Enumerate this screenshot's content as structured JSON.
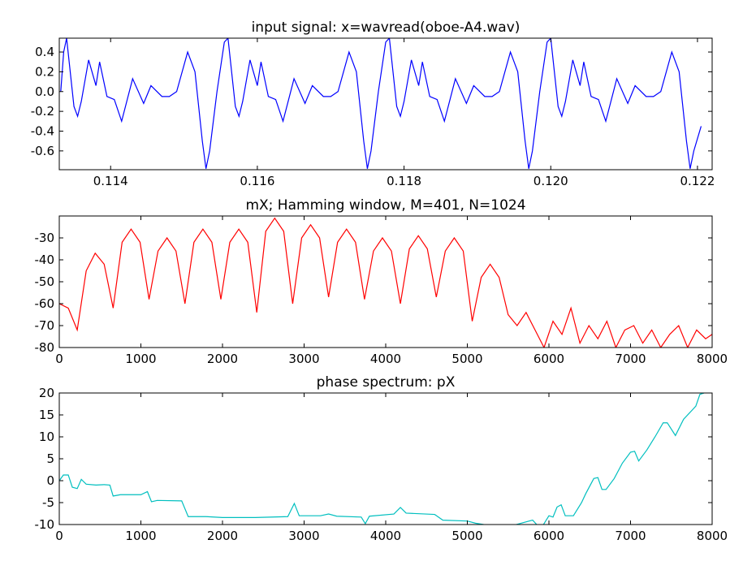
{
  "chart_data": [
    {
      "type": "line",
      "title": "input signal: x=wavread(oboe-A4.wav)",
      "x": [
        0.11332,
        0.11336,
        0.1134,
        0.1135,
        0.11355,
        0.1136,
        0.1137,
        0.1138,
        0.11385,
        0.11395,
        0.11405,
        0.11415,
        0.1143,
        0.11445,
        0.11455,
        0.1147,
        0.1148,
        0.1149,
        0.11505,
        0.11515,
        0.11525,
        0.1153,
        0.11535,
        0.11545,
        0.11555,
        0.1156,
        0.1157,
        0.11575,
        0.1158,
        0.1159,
        0.116,
        0.11605,
        0.11615,
        0.11625,
        0.11635,
        0.1165,
        0.11665,
        0.11675,
        0.1169,
        0.117,
        0.1171,
        0.11725,
        0.11735,
        0.11745,
        0.1175,
        0.11755,
        0.11765,
        0.11775,
        0.1178,
        0.1179,
        0.11795,
        0.118,
        0.1181,
        0.1182,
        0.11825,
        0.11835,
        0.11845,
        0.11855,
        0.1187,
        0.11885,
        0.11895,
        0.1191,
        0.1192,
        0.1193,
        0.11945,
        0.11955,
        0.11965,
        0.1197,
        0.11975,
        0.11985,
        0.11995,
        0.12,
        0.1201,
        0.12015,
        0.1202,
        0.1203,
        0.1204,
        0.12045,
        0.12055,
        0.12065,
        0.12075,
        0.1209,
        0.12105,
        0.12115,
        0.1213,
        0.1214,
        0.1215,
        0.12165,
        0.12175,
        0.12185,
        0.1219,
        0.12195,
        0.12205
      ],
      "series": [
        {
          "color": "#0000ff",
          "values": [
            0.0,
            0.4,
            0.54,
            -0.15,
            -0.25,
            -0.1,
            0.32,
            0.06,
            0.3,
            -0.05,
            -0.08,
            -0.3,
            0.13,
            -0.12,
            0.06,
            -0.05,
            -0.05,
            0.0,
            0.4,
            0.2,
            -0.5,
            -0.78,
            -0.6,
            0.0,
            0.5,
            0.54,
            -0.15,
            -0.25,
            -0.1,
            0.32,
            0.06,
            0.3,
            -0.05,
            -0.08,
            -0.3,
            0.13,
            -0.12,
            0.06,
            -0.05,
            -0.05,
            0.0,
            0.4,
            0.2,
            -0.5,
            -0.78,
            -0.6,
            0.0,
            0.5,
            0.54,
            -0.15,
            -0.25,
            -0.1,
            0.32,
            0.06,
            0.3,
            -0.05,
            -0.08,
            -0.3,
            0.13,
            -0.12,
            0.06,
            -0.05,
            -0.05,
            0.0,
            0.4,
            0.2,
            -0.5,
            -0.78,
            -0.6,
            0.0,
            0.5,
            0.54,
            -0.15,
            -0.25,
            -0.1,
            0.32,
            0.06,
            0.3,
            -0.05,
            -0.08,
            -0.3,
            0.13,
            -0.12,
            0.06,
            -0.05,
            -0.05,
            0.0,
            0.4,
            0.2,
            -0.5,
            -0.78,
            -0.6,
            -0.35
          ]
        }
      ],
      "xlim": [
        0.1133,
        0.1222
      ],
      "ylim": [
        -0.79,
        0.54
      ],
      "xticks": [
        0.114,
        0.116,
        0.118,
        0.12,
        0.122
      ],
      "xtick_labels": [
        "0.114",
        "0.116",
        "0.118",
        "0.120",
        "0.122"
      ],
      "yticks": [
        0.4,
        0.2,
        {
          "value": 0,
          "label": "0.0"
        },
        -0.2,
        -0.4,
        -0.6
      ]
    },
    {
      "type": "line",
      "title": "mX; Hamming window, M=401, N=1024",
      "x": [
        0,
        110,
        220,
        330,
        440,
        550,
        660,
        770,
        880,
        990,
        1100,
        1210,
        1320,
        1430,
        1540,
        1650,
        1760,
        1870,
        1980,
        2090,
        2200,
        2310,
        2420,
        2530,
        2640,
        2750,
        2860,
        2970,
        3080,
        3190,
        3300,
        3410,
        3520,
        3630,
        3740,
        3850,
        3960,
        4070,
        4180,
        4290,
        4400,
        4510,
        4620,
        4730,
        4840,
        4950,
        5060,
        5170,
        5280,
        5390,
        5500,
        5610,
        5720,
        5830,
        5940,
        6050,
        6160,
        6270,
        6380,
        6490,
        6600,
        6710,
        6820,
        6930,
        7040,
        7150,
        7260,
        7370,
        7480,
        7590,
        7700,
        7810,
        7920,
        8000
      ],
      "series": [
        {
          "color": "#ff0000",
          "values": [
            -60,
            -62,
            -72,
            -45,
            -37,
            -42,
            -62,
            -32,
            -26,
            -32,
            -58,
            -36,
            -30,
            -36,
            -60,
            -32,
            -26,
            -32,
            -58,
            -32,
            -26,
            -32,
            -64,
            -27,
            -21,
            -27,
            -60,
            -30,
            -24,
            -30,
            -57,
            -32,
            -26,
            -32,
            -58,
            -36,
            -30,
            -36,
            -60,
            -35,
            -29,
            -35,
            -57,
            -36,
            -30,
            -36,
            -68,
            -48,
            -42,
            -48,
            -65,
            -70,
            -64,
            -72,
            -80,
            -68,
            -74,
            -62,
            -78,
            -70,
            -76,
            -68,
            -80,
            -72,
            -70,
            -78,
            -72,
            -80,
            -74,
            -70,
            -80,
            -72,
            -76,
            -74
          ]
        }
      ],
      "xlim": [
        0,
        8000
      ],
      "ylim": [
        -80,
        -20
      ],
      "xticks": [
        0,
        1000,
        2000,
        3000,
        4000,
        5000,
        6000,
        7000,
        8000
      ],
      "yticks": [
        -30,
        -40,
        -50,
        -60,
        -70,
        -80
      ]
    },
    {
      "type": "line",
      "title": "phase spectrum: pX",
      "x": [
        0,
        50,
        110,
        160,
        220,
        270,
        330,
        450,
        550,
        620,
        660,
        750,
        1000,
        1080,
        1130,
        1200,
        1500,
        1580,
        1800,
        2000,
        2400,
        2800,
        2880,
        2940,
        3200,
        3300,
        3400,
        3700,
        3750,
        3800,
        4100,
        4180,
        4250,
        4600,
        4700,
        5000,
        5100,
        5200,
        5500,
        5800,
        5900,
        6000,
        6050,
        6100,
        6150,
        6200,
        6300,
        6400,
        6450,
        6550,
        6600,
        6650,
        6700,
        6800,
        6900,
        7000,
        7050,
        7100,
        7200,
        7300,
        7400,
        7450,
        7550,
        7650,
        7750,
        7800,
        7850,
        7900
      ],
      "series": [
        {
          "color": "#00bfbf",
          "values": [
            0,
            1.3,
            1.3,
            -1.5,
            -1.8,
            0.3,
            -0.8,
            -1,
            -0.9,
            -1,
            -3.5,
            -3.2,
            -3.2,
            -2.5,
            -4.8,
            -4.5,
            -4.6,
            -8.2,
            -8.2,
            -8.4,
            -8.4,
            -8.2,
            -5.2,
            -8.0,
            -8.0,
            -7.6,
            -8.1,
            -8.3,
            -9.8,
            -8.1,
            -7.6,
            -6.1,
            -7.4,
            -7.7,
            -9.0,
            -9.2,
            -9.7,
            -10,
            -10.5,
            -9,
            -11,
            -8,
            -8.3,
            -6,
            -5.5,
            -8,
            -8,
            -5,
            -3,
            0.5,
            0.7,
            -2,
            -2,
            0.5,
            4,
            6.5,
            6.7,
            4.5,
            7,
            10,
            13.2,
            13.2,
            10.3,
            14,
            16,
            17,
            19.7,
            20
          ]
        }
      ],
      "xlim": [
        0,
        8000
      ],
      "ylim": [
        -10,
        20
      ],
      "xticks": [
        0,
        1000,
        2000,
        3000,
        4000,
        5000,
        6000,
        7000,
        8000
      ],
      "yticks": [
        20,
        15,
        10,
        5,
        0,
        -5,
        -10
      ]
    }
  ]
}
